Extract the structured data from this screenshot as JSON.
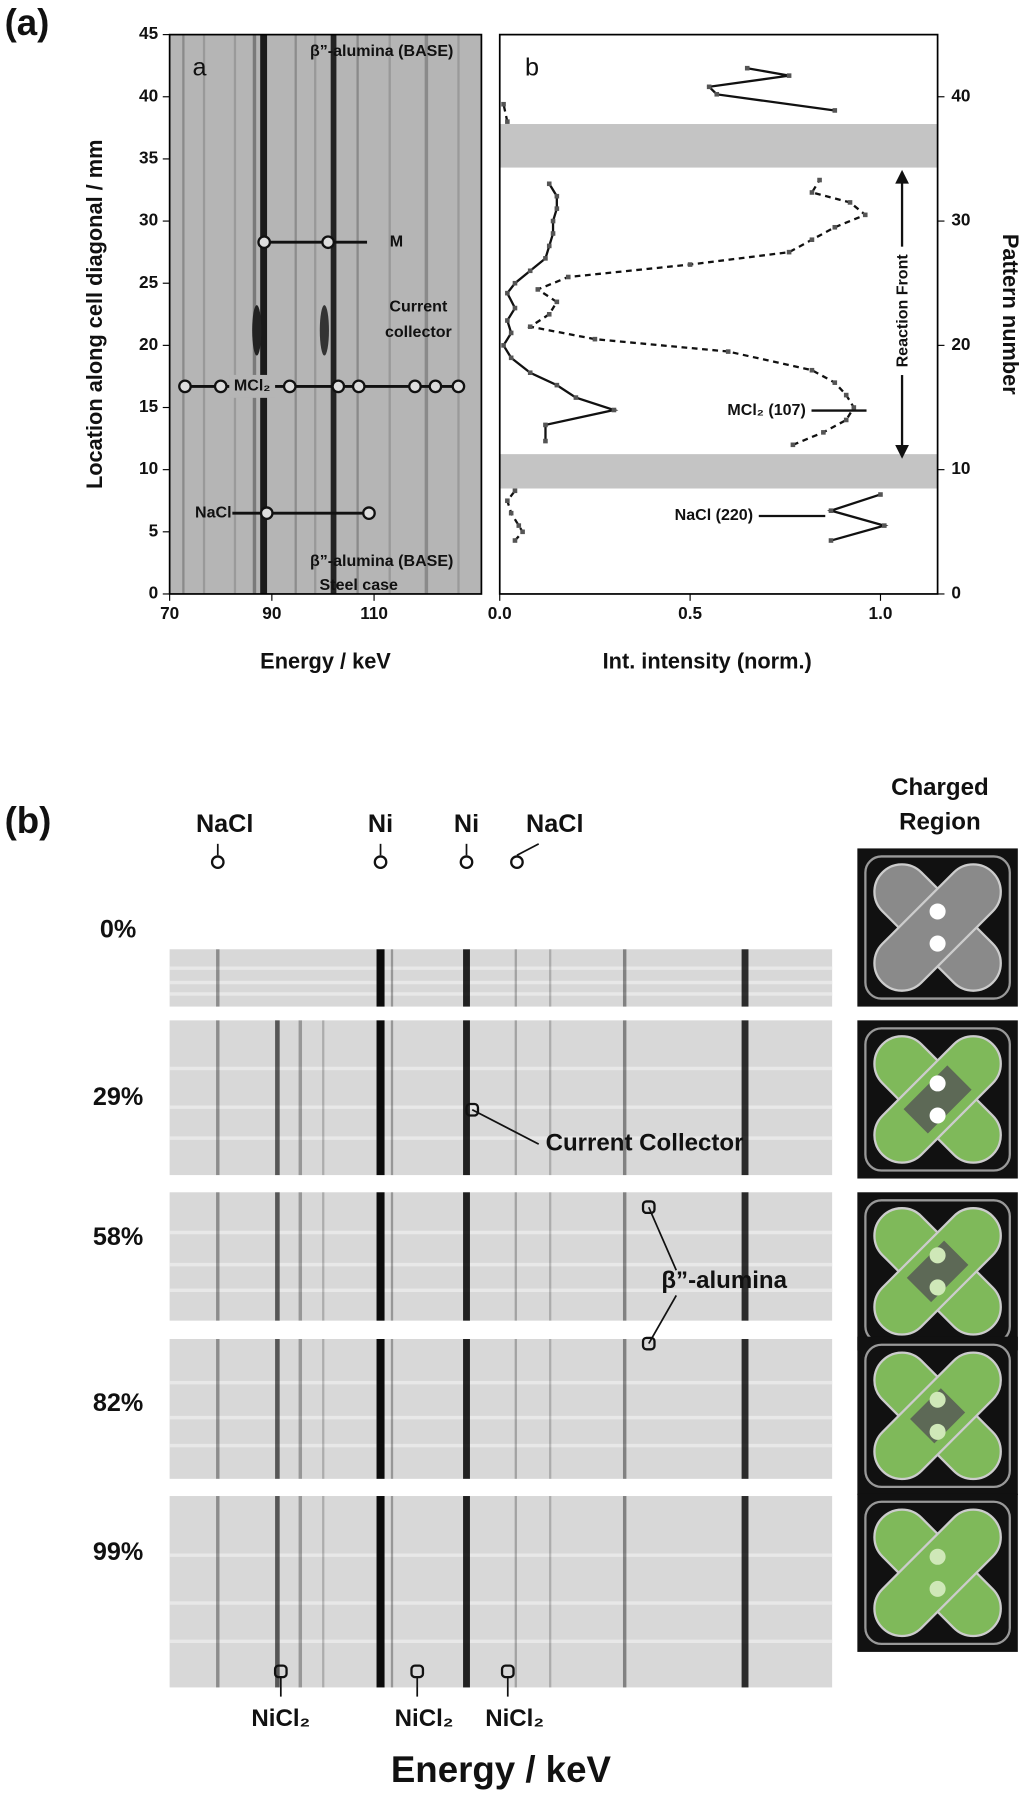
{
  "figure_a": {
    "label": "(a)"
  },
  "chart_data": [
    {
      "type": "scatter",
      "panel": "a",
      "xlabel": "Energy / keV",
      "ylabel": "Location along cell diagonal / mm",
      "xlim": [
        70,
        131
      ],
      "ylim": [
        0,
        45
      ],
      "xticks": [
        70,
        90,
        110
      ],
      "yticks": [
        0,
        5,
        10,
        15,
        20,
        25,
        30,
        35,
        40,
        45
      ],
      "series": [
        {
          "name": "M",
          "x": [
            88.5,
            101
          ],
          "values": [
            28.3,
            28.3
          ]
        },
        {
          "name": "MCl₂",
          "x": [
            73,
            80,
            93.5,
            103,
            107,
            118,
            122,
            126.5
          ],
          "values": [
            16.7,
            16.7,
            16.7,
            16.7,
            16.7,
            16.7,
            16.7,
            16.7
          ]
        },
        {
          "name": "NaCl",
          "x": [
            89,
            109
          ],
          "values": [
            6.5,
            6.5
          ]
        }
      ],
      "annotations": [
        "β”-alumina (BASE)",
        "Current",
        "collector",
        "β”-alumina (BASE)",
        "Steel case"
      ]
    },
    {
      "type": "line",
      "panel": "b",
      "xlabel": "Int. intensity (norm.)",
      "y2label": "Pattern number",
      "xlim": [
        0,
        1.15
      ],
      "y2lim": [
        0,
        45
      ],
      "xticks": [
        {
          "value": 0,
          "label": "0.0"
        },
        0.5,
        {
          "value": 1,
          "label": "1.0"
        }
      ],
      "y2ticks": [
        0,
        10,
        20,
        30,
        40
      ],
      "series": [
        {
          "style": "solid",
          "axis": "y2",
          "x": [
            0.87,
            1.01,
            0.87,
            1.0,
            null,
            0.12,
            0.12,
            0.3,
            0.2,
            0.15,
            0.08,
            0.03,
            0.01,
            0.03,
            0.02,
            0.04,
            0.02,
            0.04,
            0.08,
            0.12,
            0.13,
            0.14,
            0.14,
            0.15,
            0.15,
            0.13,
            null,
            0.88,
            0.57,
            0.55,
            0.76,
            0.65
          ],
          "values": [
            4.3,
            5.5,
            6.7,
            8.0,
            null,
            12.3,
            13.6,
            14.8,
            15.8,
            16.8,
            17.8,
            19,
            20,
            21,
            22,
            23,
            24.2,
            25,
            26,
            27,
            28,
            29,
            30,
            31,
            32,
            33,
            null,
            38.9,
            40.2,
            40.8,
            41.7,
            42.3
          ]
        },
        {
          "style": "dashed",
          "axis": "y2",
          "x": [
            0.04,
            0.06,
            0.05,
            0.03,
            0.02,
            0.04,
            null,
            0.77,
            0.85,
            0.91,
            0.93,
            0.91,
            0.88,
            0.82,
            0.6,
            0.25,
            0.08,
            0.13,
            0.15,
            0.1,
            0.18,
            0.5,
            0.76,
            0.82,
            0.88,
            0.96,
            0.92,
            0.82,
            0.84,
            null,
            0.02,
            0.01
          ],
          "values": [
            4.3,
            5.0,
            5.5,
            6.5,
            7.5,
            8.3,
            null,
            12,
            13,
            14,
            15,
            16,
            17,
            18,
            19.5,
            20.5,
            21.5,
            22.5,
            23.5,
            24.5,
            25.5,
            26.5,
            27.5,
            28.5,
            29.5,
            30.5,
            31.5,
            32.3,
            33.3,
            null,
            38,
            39.4
          ]
        }
      ],
      "annotations": [
        "Reaction Front",
        "MCl₂ (107)",
        "NaCl (220)"
      ]
    }
  ],
  "figure_b": {
    "label": "(b)",
    "peaks": [
      "NaCl",
      "Ni",
      "Ni",
      "NaCl"
    ],
    "rows": [
      "0%",
      "29%",
      "58%",
      "82%",
      "99%"
    ],
    "current_collector": "Current Collector",
    "beta_alumina": "β”-alumina",
    "nicl2": [
      "NiCl₂",
      "NiCl₂",
      "NiCl₂"
    ],
    "xlabel": "Energy / keV",
    "inset_title": [
      "Charged",
      "Region"
    ]
  }
}
